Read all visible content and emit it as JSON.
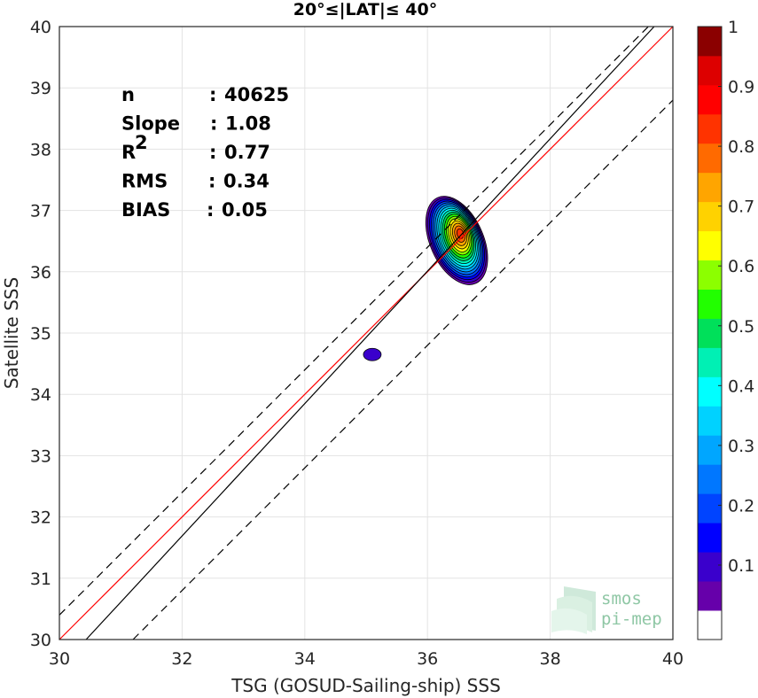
{
  "chart_data": {
    "type": "scatter",
    "title": "20°≤|LAT|≤ 40°",
    "xlabel": "TSG (GOSUD-Sailing-ship) SSS",
    "ylabel": "Satellite SSS",
    "xlim": [
      30,
      40
    ],
    "ylim": [
      30,
      40
    ],
    "xticks": [
      "30",
      "32",
      "34",
      "36",
      "38",
      "40"
    ],
    "yticks": [
      "30",
      "31",
      "32",
      "33",
      "34",
      "35",
      "36",
      "37",
      "38",
      "39",
      "40"
    ],
    "grid": true,
    "density_peak": {
      "x": 36.5,
      "y": 36.6
    },
    "secondary_cluster": {
      "x": 35.1,
      "y": 34.65
    },
    "lines": [
      {
        "kind": "one-to-one",
        "color": "#ff0000",
        "slope": 1.0,
        "intercept": 0.0,
        "style": "solid"
      },
      {
        "kind": "regression",
        "color": "#000000",
        "slope": 1.08,
        "intercept": -2.87,
        "style": "solid"
      },
      {
        "kind": "upper-bound",
        "color": "#000000",
        "slope": 1.0,
        "intercept": 0.4,
        "style": "dashed"
      },
      {
        "kind": "lower-bound",
        "color": "#000000",
        "slope": 1.0,
        "intercept": -1.2,
        "style": "dashed"
      }
    ],
    "stats": [
      {
        "label": "n",
        "sep": ": ",
        "value": "40625"
      },
      {
        "label": "Slope",
        "sep": ": ",
        "value": "1.08"
      },
      {
        "label": "R",
        "sup": "2",
        "sep": ": ",
        "value": "0.77"
      },
      {
        "label": "RMS",
        "sep": ": ",
        "value": "0.34"
      },
      {
        "label": "BIAS",
        "sep": ": ",
        "value": "0.05"
      }
    ],
    "colorbar": {
      "range": [
        0,
        1
      ],
      "ticks": [
        "0.1",
        "0.2",
        "0.3",
        "0.4",
        "0.5",
        "0.6",
        "0.7",
        "0.8",
        "0.9",
        "1"
      ],
      "colors": [
        "#ffffff",
        "#6600aa",
        "#3a00cc",
        "#0000ff",
        "#0044ff",
        "#0077ff",
        "#00a6ff",
        "#00d2ff",
        "#00ffff",
        "#00f0b4",
        "#00e05a",
        "#22ff00",
        "#8cff00",
        "#ffff00",
        "#ffd200",
        "#ffa500",
        "#ff6a00",
        "#ff3300",
        "#ff0000",
        "#dd0000",
        "#8b0000"
      ]
    }
  },
  "logo": {
    "line1": "smos",
    "line2": "pi-mep"
  }
}
